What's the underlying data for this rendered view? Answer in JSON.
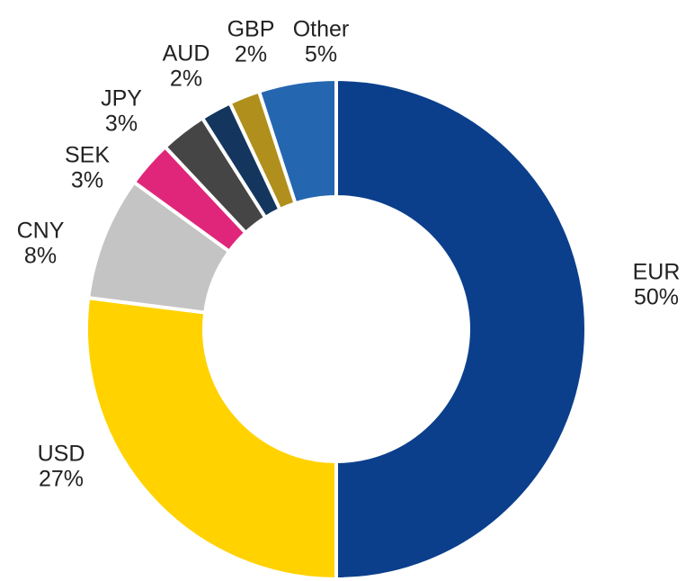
{
  "chart_data": {
    "type": "donut",
    "categories": [
      "EUR",
      "USD",
      "CNY",
      "SEK",
      "JPY",
      "AUD",
      "GBP",
      "Other"
    ],
    "values": [
      50,
      27,
      8,
      3,
      3,
      2,
      2,
      5
    ],
    "value_labels": [
      "50%",
      "27%",
      "8%",
      "3%",
      "3%",
      "2%",
      "2%",
      "5%"
    ],
    "colors": [
      "#0b3f8c",
      "#ffd200",
      "#c4c4c4",
      "#e0267a",
      "#454545",
      "#14365e",
      "#b08f1c",
      "#2566b0"
    ]
  }
}
